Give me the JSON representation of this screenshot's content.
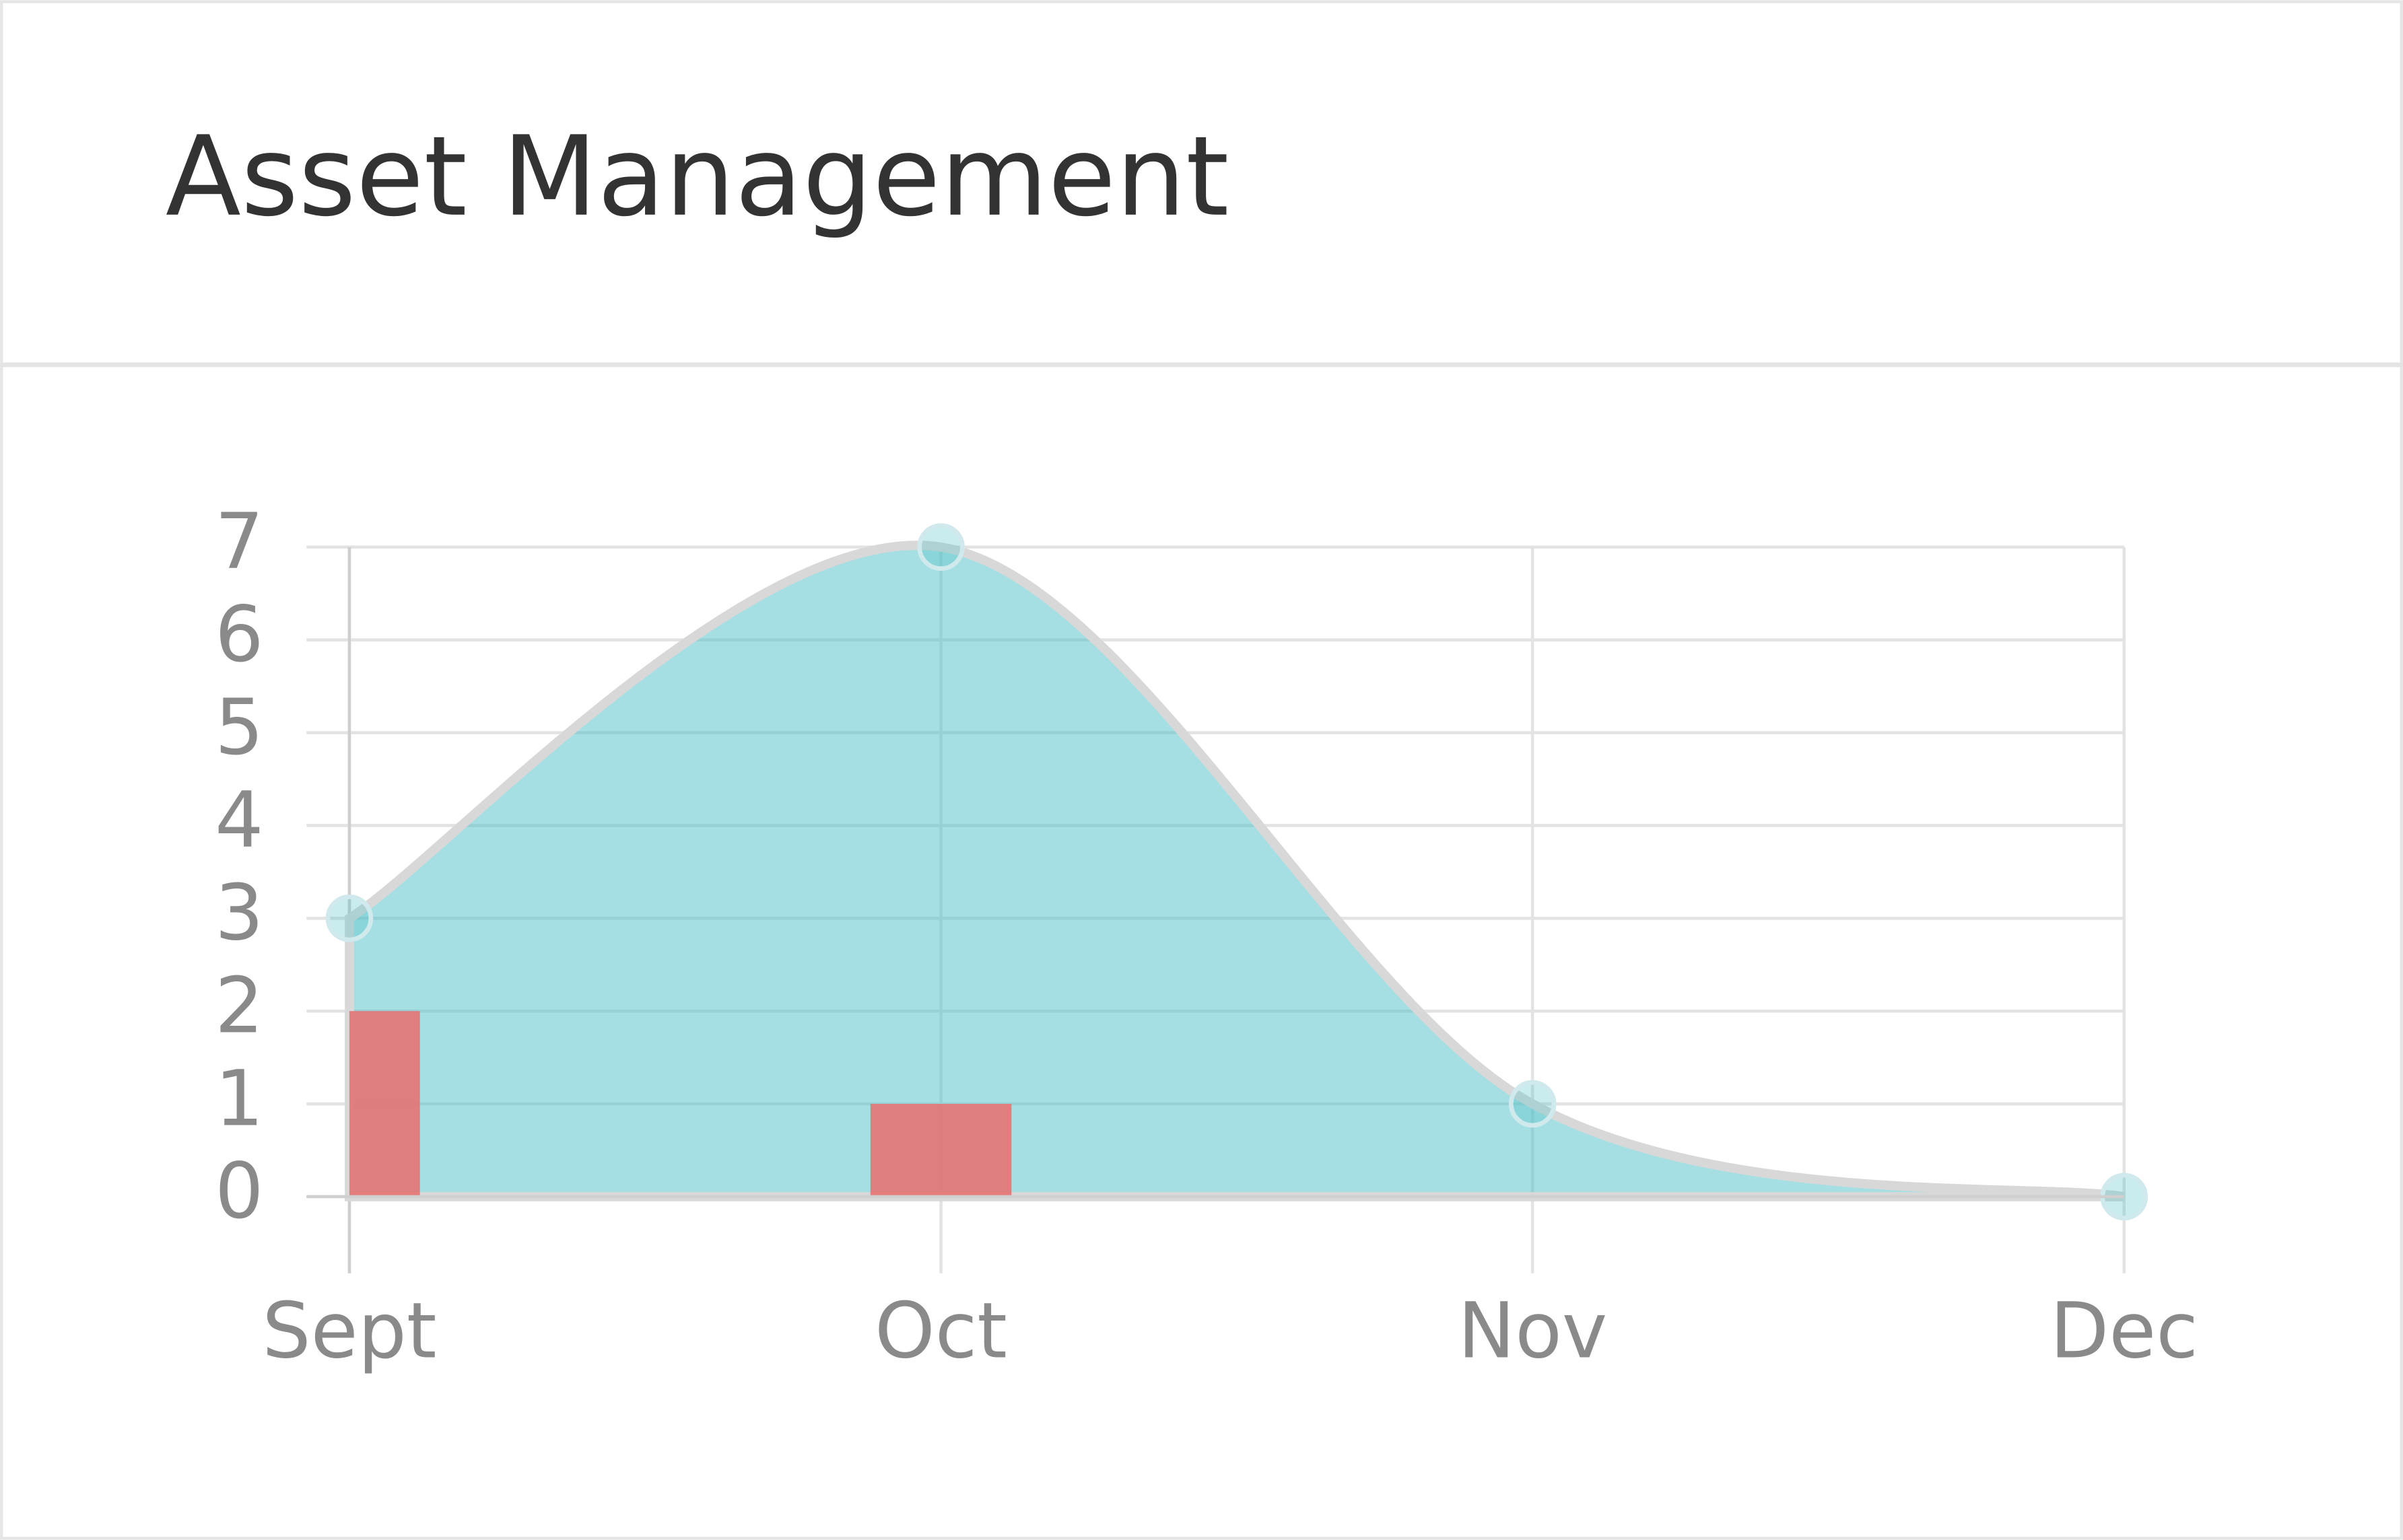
{
  "chart_data": {
    "type": "combo",
    "title": "Asset Management",
    "categories": [
      "Sept",
      "Oct",
      "Nov",
      "Dec"
    ],
    "series": [
      {
        "type": "area",
        "color": "#4bc0c8",
        "values": [
          3,
          7,
          1,
          0
        ]
      },
      {
        "type": "bar",
        "color": "#e57373",
        "values": [
          2,
          1,
          0,
          0
        ]
      }
    ],
    "ylim": [
      0,
      7
    ],
    "yticks": [
      0,
      1,
      2,
      3,
      4,
      5,
      6,
      7
    ],
    "grid": true
  }
}
